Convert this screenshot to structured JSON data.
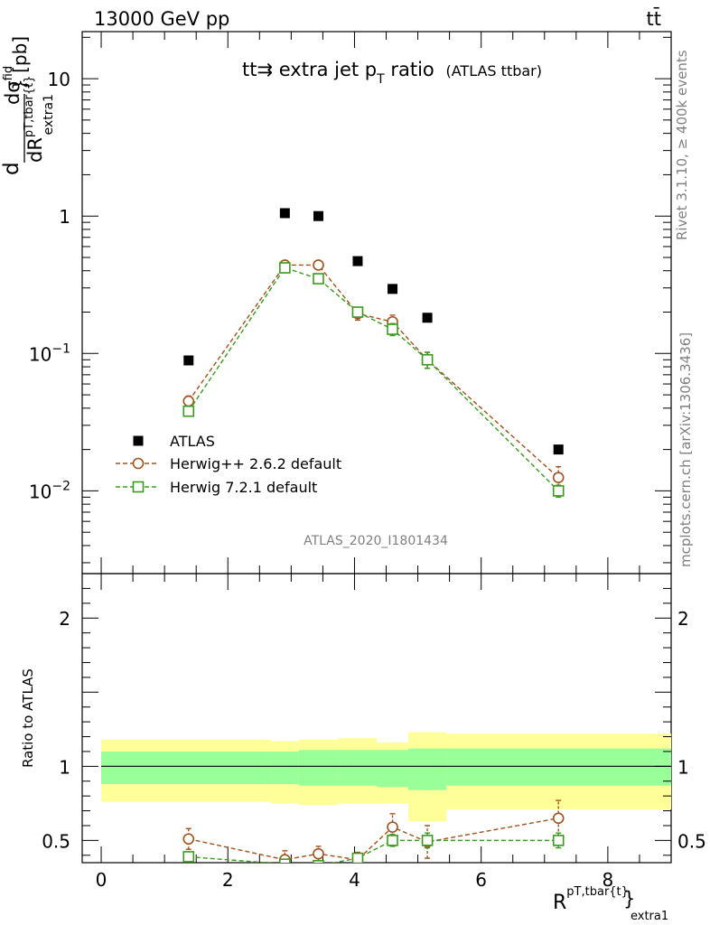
{
  "chart_data": [
    {
      "panel": "main",
      "type": "scatter",
      "header_left": "13000 GeV pp",
      "header_right": "tt̄",
      "title": "tt⇉ extra jet p",
      "title_sub": "T",
      "title_tail": " ratio",
      "title_note": "(ATLAS ttbar)",
      "ylabel": "dσ/dR [pb]",
      "ylabel_parts": {
        "d": "d",
        "num": "dσ",
        "num_sup": "fid",
        "den": "dR",
        "den_sup": "pT,tbar{t}",
        "den_sub": "extra1",
        "unit": "} [pb]"
      },
      "yscale": "log",
      "ylim": [
        0.0025,
        22
      ],
      "xlim": [
        -0.3,
        9.0
      ],
      "yticks": [
        {
          "v": 10,
          "base": "10",
          "exp": ""
        },
        {
          "v": 1,
          "base": "1",
          "exp": ""
        },
        {
          "v": 0.1,
          "base": "10",
          "exp": "−1"
        },
        {
          "v": 0.01,
          "base": "10",
          "exp": "−2"
        }
      ],
      "watermark": "ATLAS_2020_I1801434",
      "series": [
        {
          "name": "ATLAS",
          "marker": "square-filled",
          "color": "#000000",
          "x": [
            1.38,
            2.9,
            3.43,
            4.05,
            4.6,
            5.15,
            7.22
          ],
          "y": [
            0.089,
            1.05,
            1.0,
            0.47,
            0.295,
            0.182,
            0.02
          ]
        },
        {
          "name": "Herwig++ 2.6.2 default",
          "marker": "circle-open",
          "color": "#a0521e",
          "x": [
            1.38,
            2.9,
            3.43,
            4.05,
            4.6,
            5.15,
            7.22
          ],
          "y": [
            0.045,
            0.44,
            0.44,
            0.195,
            0.17,
            0.09,
            0.0125
          ],
          "err": [
            0.004,
            0.025,
            0.025,
            0.02,
            0.02,
            0.012,
            0.0025
          ]
        },
        {
          "name": "Herwig 7.2.1 default",
          "marker": "square-open",
          "color": "#3a9a1e",
          "x": [
            1.38,
            2.9,
            3.43,
            4.05,
            4.6,
            5.15,
            7.22
          ],
          "y": [
            0.038,
            0.42,
            0.35,
            0.2,
            0.15,
            0.09,
            0.01
          ],
          "err": [
            0.003,
            0.02,
            0.02,
            0.015,
            0.015,
            0.012,
            0.001
          ]
        }
      ]
    },
    {
      "panel": "ratio",
      "type": "band+line",
      "ylabel": "Ratio to ATLAS",
      "ylim": [
        0.35,
        2.3
      ],
      "xlim": [
        -0.3,
        9.0
      ],
      "yticks": [
        0.5,
        1,
        2
      ],
      "xticks": [
        0,
        2,
        4,
        6,
        8
      ],
      "xlabel_parts": {
        "main": "R",
        "sup": "pT,tbar{t}",
        "bracket": "}",
        "sub": "extra1"
      },
      "bands": {
        "edges": [
          0.0,
          2.68,
          3.12,
          3.75,
          4.35,
          4.85,
          5.45,
          9.0
        ],
        "yellow_low": [
          0.76,
          0.75,
          0.74,
          0.75,
          0.75,
          0.63,
          0.71
        ],
        "yellow_high": [
          1.18,
          1.17,
          1.18,
          1.19,
          1.16,
          1.23,
          1.22
        ],
        "green_low": [
          0.88,
          0.88,
          0.87,
          0.87,
          0.86,
          0.84,
          0.87
        ],
        "green_high": [
          1.1,
          1.1,
          1.11,
          1.11,
          1.11,
          1.12,
          1.12
        ]
      },
      "series": [
        {
          "name": "Herwig++ 2.6.2 default",
          "marker": "circle-open",
          "color": "#a0521e",
          "x": [
            1.38,
            2.9,
            3.43,
            4.05,
            4.6,
            5.15,
            7.22
          ],
          "y": [
            0.51,
            0.37,
            0.41,
            0.37,
            0.59,
            0.49,
            0.65
          ],
          "err": [
            0.07,
            0.06,
            0.05,
            0.05,
            0.09,
            0.11,
            0.12
          ]
        },
        {
          "name": "Herwig 7.2.1 default",
          "marker": "square-open",
          "color": "#3a9a1e",
          "x": [
            1.38,
            2.9,
            3.43,
            4.05,
            4.6,
            5.15,
            7.22
          ],
          "y": [
            0.39,
            0.34,
            0.33,
            0.38,
            0.5,
            0.5,
            0.5
          ],
          "err": [
            0.03,
            0.03,
            0.03,
            0.03,
            0.04,
            0.05,
            0.05
          ]
        }
      ]
    }
  ],
  "side_labels": {
    "top": "Rivet 3.1.10, ≥ 400k events",
    "bottom": "mcplots.cern.ch [arXiv:1306.3436]"
  }
}
